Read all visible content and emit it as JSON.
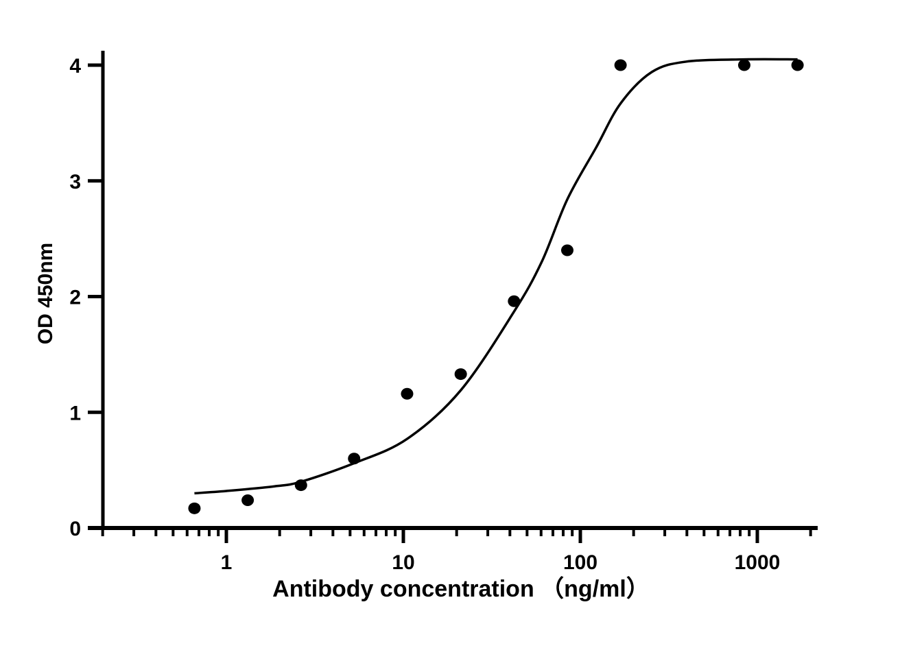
{
  "chart_data": {
    "type": "scatter",
    "title": "",
    "xlabel": "Antibody concentration （ng/ml）",
    "ylabel": "OD 450nm",
    "x_scale": "log",
    "xlim": [
      0.2,
      2000
    ],
    "ylim": [
      0,
      4.12
    ],
    "x_ticks": [
      1,
      10,
      100,
      1000
    ],
    "x_tick_labels": [
      "1",
      "10",
      "100",
      "1000"
    ],
    "y_ticks": [
      0,
      1,
      2,
      3,
      4
    ],
    "y_tick_labels": [
      "0",
      "1",
      "2",
      "3",
      "4"
    ],
    "grid": false,
    "colors": {
      "points": "#000000",
      "curve": "#000000"
    },
    "points": {
      "x": [
        0.66,
        1.32,
        2.64,
        5.27,
        10.5,
        21.1,
        42.2,
        84.4,
        168.75,
        843.75,
        1687.5
      ],
      "y": [
        0.17,
        0.24,
        0.37,
        0.6,
        1.16,
        1.33,
        1.96,
        2.4,
        4.0,
        4.0,
        4.0
      ]
    },
    "fit_curve": {
      "x": [
        0.66,
        1.0,
        1.87,
        2.64,
        5.27,
        10.5,
        21.1,
        42.2,
        60.5,
        84.4,
        123,
        169,
        253,
        395,
        843.75,
        1687.5
      ],
      "y": [
        0.3,
        0.32,
        0.36,
        0.4,
        0.56,
        0.77,
        1.19,
        1.87,
        2.3,
        2.84,
        3.29,
        3.67,
        3.94,
        4.03,
        4.05,
        4.05
      ]
    }
  }
}
